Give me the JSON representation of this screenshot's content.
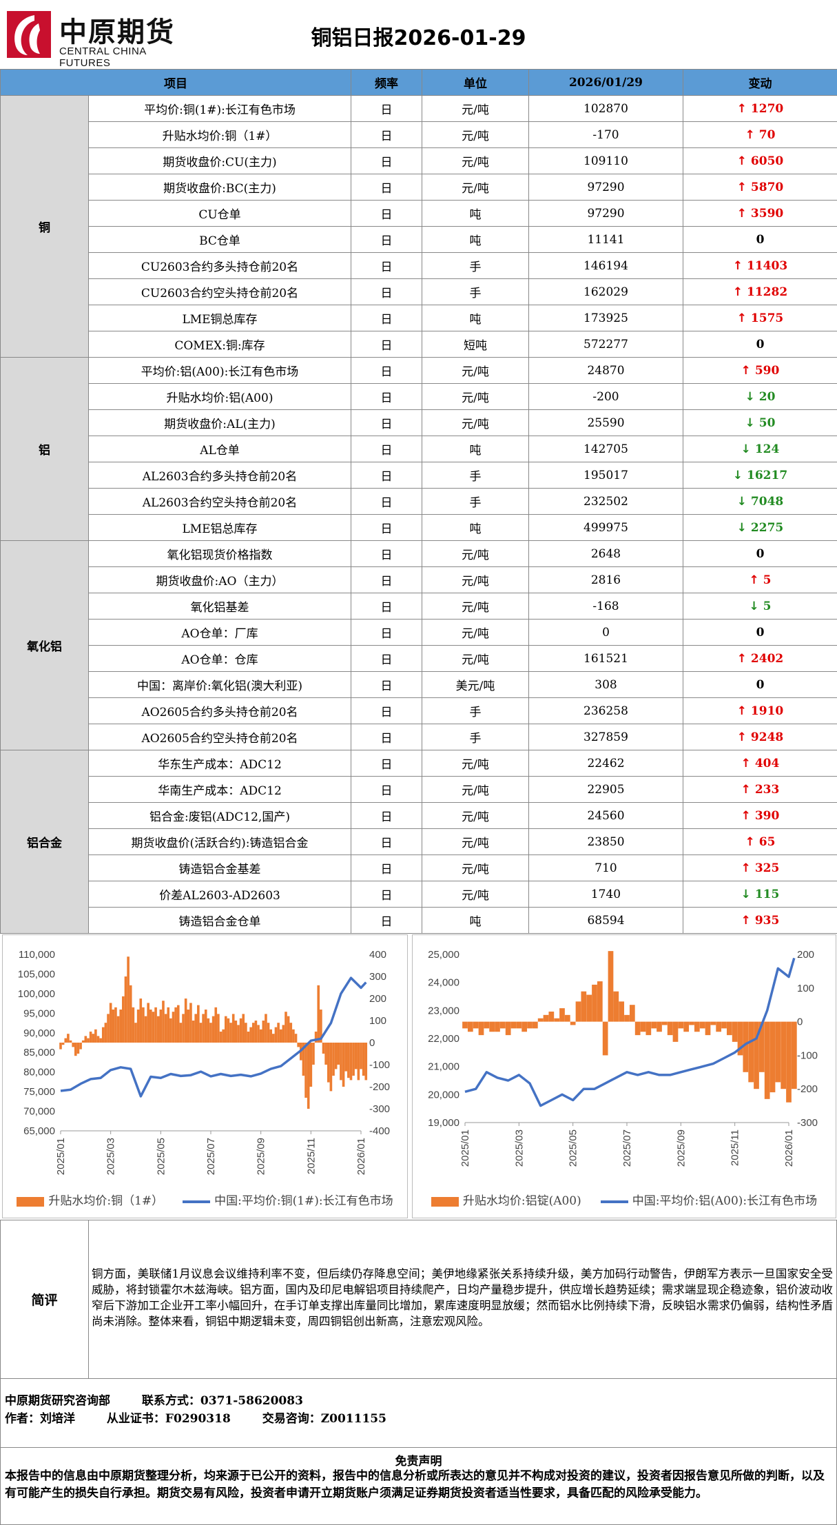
{
  "logo": {
    "cn": "中原期货",
    "en": "CENTRAL CHINA FUTURES"
  },
  "title": "铜铝日报2026-01-29",
  "table": {
    "headers": [
      "项目",
      "频率",
      "单位",
      "2026/01/29",
      "变动"
    ],
    "groups": [
      {
        "name": "铜",
        "rows": [
          {
            "item": "平均价:铜(1#):长江有色市场",
            "freq": "日",
            "unit": "元/吨",
            "value": "102870",
            "dir": "up",
            "change": "1270"
          },
          {
            "item": "升贴水均价:铜（1#）",
            "freq": "日",
            "unit": "元/吨",
            "value": "-170",
            "dir": "up",
            "change": "70"
          },
          {
            "item": "期货收盘价:CU(主力)",
            "freq": "日",
            "unit": "元/吨",
            "value": "109110",
            "dir": "up",
            "change": "6050"
          },
          {
            "item": "期货收盘价:BC(主力)",
            "freq": "日",
            "unit": "元/吨",
            "value": "97290",
            "dir": "up",
            "change": "5870"
          },
          {
            "item": "CU仓单",
            "freq": "日",
            "unit": "吨",
            "value": "97290",
            "dir": "up",
            "change": "3590"
          },
          {
            "item": "BC仓单",
            "freq": "日",
            "unit": "吨",
            "value": "11141",
            "dir": "flat",
            "change": "0"
          },
          {
            "item": "CU2603合约多头持仓前20名",
            "freq": "日",
            "unit": "手",
            "value": "146194",
            "dir": "up",
            "change": "11403"
          },
          {
            "item": "CU2603合约空头持仓前20名",
            "freq": "日",
            "unit": "手",
            "value": "162029",
            "dir": "up",
            "change": "11282"
          },
          {
            "item": "LME铜总库存",
            "freq": "日",
            "unit": "吨",
            "value": "173925",
            "dir": "up",
            "change": "1575"
          },
          {
            "item": "COMEX:铜:库存",
            "freq": "日",
            "unit": "短吨",
            "value": "572277",
            "dir": "flat",
            "change": "0"
          }
        ]
      },
      {
        "name": "铝",
        "rows": [
          {
            "item": "平均价:铝(A00):长江有色市场",
            "freq": "日",
            "unit": "元/吨",
            "value": "24870",
            "dir": "up",
            "change": "590"
          },
          {
            "item": "升贴水均价:铝(A00)",
            "freq": "日",
            "unit": "元/吨",
            "value": "-200",
            "dir": "down",
            "change": "20"
          },
          {
            "item": "期货收盘价:AL(主力)",
            "freq": "日",
            "unit": "元/吨",
            "value": "25590",
            "dir": "down",
            "change": "50"
          },
          {
            "item": "AL仓单",
            "freq": "日",
            "unit": "吨",
            "value": "142705",
            "dir": "down",
            "change": "124"
          },
          {
            "item": "AL2603合约多头持仓前20名",
            "freq": "日",
            "unit": "手",
            "value": "195017",
            "dir": "down",
            "change": "16217"
          },
          {
            "item": "AL2603合约空头持仓前20名",
            "freq": "日",
            "unit": "手",
            "value": "232502",
            "dir": "down",
            "change": "7048"
          },
          {
            "item": "LME铝总库存",
            "freq": "日",
            "unit": "吨",
            "value": "499975",
            "dir": "down",
            "change": "2275"
          }
        ]
      },
      {
        "name": "氧化铝",
        "rows": [
          {
            "item": "氧化铝现货价格指数",
            "freq": "日",
            "unit": "元/吨",
            "value": "2648",
            "dir": "flat",
            "change": "0"
          },
          {
            "item": "期货收盘价:AO（主力）",
            "freq": "日",
            "unit": "元/吨",
            "value": "2816",
            "dir": "up",
            "change": "5"
          },
          {
            "item": "氧化铝基差",
            "freq": "日",
            "unit": "元/吨",
            "value": "-168",
            "dir": "down",
            "change": "5"
          },
          {
            "item": "AO仓单：厂库",
            "freq": "日",
            "unit": "元/吨",
            "value": "0",
            "dir": "flat",
            "change": "0"
          },
          {
            "item": "AO仓单：仓库",
            "freq": "日",
            "unit": "元/吨",
            "value": "161521",
            "dir": "up",
            "change": "2402"
          },
          {
            "item": "中国：离岸价:氧化铝(澳大利亚)",
            "freq": "日",
            "unit": "美元/吨",
            "value": "308",
            "dir": "flat",
            "change": "0"
          },
          {
            "item": "AO2605合约多头持仓前20名",
            "freq": "日",
            "unit": "手",
            "value": "236258",
            "dir": "up",
            "change": "1910"
          },
          {
            "item": "AO2605合约空头持仓前20名",
            "freq": "日",
            "unit": "手",
            "value": "327859",
            "dir": "up",
            "change": "9248"
          }
        ]
      },
      {
        "name": "铝合金",
        "rows": [
          {
            "item": "华东生产成本：ADC12",
            "freq": "日",
            "unit": "元/吨",
            "value": "22462",
            "dir": "up",
            "change": "404"
          },
          {
            "item": "华南生产成本：ADC12",
            "freq": "日",
            "unit": "元/吨",
            "value": "22905",
            "dir": "up",
            "change": "233"
          },
          {
            "item": "铝合金:废铝(ADC12,国产)",
            "freq": "日",
            "unit": "元/吨",
            "value": "24560",
            "dir": "up",
            "change": "390"
          },
          {
            "item": "期货收盘价(活跃合约):铸造铝合金",
            "freq": "日",
            "unit": "元/吨",
            "value": "23850",
            "dir": "up",
            "change": "65"
          },
          {
            "item": "铸造铝合金基差",
            "freq": "日",
            "unit": "元/吨",
            "value": "710",
            "dir": "up",
            "change": "325"
          },
          {
            "item": "价差AL2603-AD2603",
            "freq": "日",
            "unit": "元/吨",
            "value": "1740",
            "dir": "down",
            "change": "115"
          },
          {
            "item": "铸造铝合金仓单",
            "freq": "日",
            "unit": "吨",
            "value": "68594",
            "dir": "up",
            "change": "935"
          }
        ]
      }
    ]
  },
  "chart_data": [
    {
      "type": "bar+line",
      "x_ticks": [
        "2025/01",
        "2025/03",
        "2025/05",
        "2025/07",
        "2025/09",
        "2025/11",
        "2026/01"
      ],
      "left_axis": {
        "ticks": [
          "65,000",
          "70,000",
          "75,000",
          "80,000",
          "85,000",
          "90,000",
          "95,000",
          "100,000",
          "105,000",
          "110,000"
        ],
        "ylim": [
          65000,
          110000
        ]
      },
      "right_axis": {
        "ticks": [
          "-400",
          "-300",
          "-200",
          "-100",
          "0",
          "100",
          "200",
          "300",
          "400"
        ],
        "ylim": [
          -400,
          400
        ]
      },
      "series": [
        {
          "name": "升贴水均价:铜（1#）",
          "kind": "bar",
          "axis": "right",
          "color": "#ed7d31",
          "x": [
            0,
            0.05,
            0.1,
            0.15,
            0.2,
            0.25,
            0.3,
            0.35,
            0.4,
            0.45,
            0.5,
            0.55,
            0.6,
            0.65,
            0.7,
            0.75,
            0.8,
            0.85,
            0.9,
            0.95,
            1.0,
            1.05,
            1.1,
            1.15,
            1.2,
            1.25,
            1.3,
            1.35,
            1.4,
            1.45,
            1.5,
            1.55,
            1.6,
            1.65,
            1.7,
            1.75,
            1.8,
            1.85,
            1.9,
            1.95,
            2.0,
            2.05,
            2.1,
            2.15,
            2.2,
            2.25,
            2.3,
            2.35,
            2.4,
            2.45,
            2.5,
            2.55,
            2.6,
            2.65,
            2.7,
            2.75,
            2.8,
            2.85,
            2.9,
            2.95,
            3.0,
            3.05,
            3.1,
            3.15,
            3.2,
            3.25,
            3.3,
            3.35,
            3.4,
            3.45,
            3.5,
            3.55,
            3.6,
            3.65,
            3.7,
            3.75,
            3.8,
            3.85,
            3.9,
            3.95,
            4.0,
            4.05,
            4.1,
            4.15,
            4.2,
            4.25,
            4.3,
            4.35,
            4.4,
            4.45,
            4.5,
            4.55,
            4.6,
            4.65,
            4.7,
            4.75,
            4.8,
            4.85,
            4.9,
            4.95,
            5.0,
            5.05,
            5.1,
            5.15,
            5.2,
            5.25,
            5.3,
            5.35,
            5.4,
            5.45,
            5.5,
            5.55,
            5.6,
            5.65,
            5.7,
            5.75,
            5.8,
            5.85,
            5.9,
            5.95,
            6.0,
            6.05,
            6.1
          ],
          "values": [
            -30,
            -10,
            20,
            40,
            10,
            -20,
            -60,
            -50,
            -30,
            10,
            30,
            20,
            50,
            40,
            60,
            30,
            20,
            70,
            90,
            130,
            180,
            150,
            160,
            120,
            150,
            210,
            300,
            390,
            260,
            160,
            90,
            150,
            200,
            160,
            120,
            180,
            150,
            140,
            160,
            120,
            150,
            190,
            130,
            160,
            110,
            140,
            160,
            170,
            90,
            130,
            200,
            150,
            180,
            100,
            130,
            170,
            90,
            130,
            150,
            110,
            90,
            120,
            160,
            130,
            50,
            60,
            120,
            110,
            90,
            130,
            100,
            80,
            110,
            130,
            90,
            50,
            70,
            90,
            100,
            80,
            60,
            100,
            130,
            90,
            60,
            40,
            70,
            90,
            60,
            80,
            140,
            120,
            90,
            60,
            40,
            -20,
            -80,
            -150,
            -250,
            -300,
            -200,
            -100,
            50,
            260,
            150,
            -50,
            -100,
            -180,
            -220,
            -150,
            -120,
            -100,
            -170,
            -200,
            -130,
            -160,
            -170,
            -150,
            -120,
            -170,
            -120,
            -150,
            -170
          ]
        },
        {
          "name": "中国:平均价:铜(1#):长江有色市场",
          "kind": "line",
          "axis": "left",
          "color": "#4472c4",
          "x": [
            0,
            0.2,
            0.4,
            0.6,
            0.8,
            1.0,
            1.2,
            1.4,
            1.6,
            1.8,
            2.0,
            2.2,
            2.4,
            2.6,
            2.8,
            3.0,
            3.2,
            3.4,
            3.6,
            3.8,
            4.0,
            4.2,
            4.4,
            4.6,
            4.8,
            5.0,
            5.2,
            5.4,
            5.6,
            5.8,
            6.0,
            6.1
          ],
          "values": [
            75200,
            75500,
            77000,
            78200,
            78500,
            80500,
            81200,
            80800,
            73800,
            78800,
            78500,
            79500,
            79000,
            79200,
            80100,
            78900,
            79500,
            79000,
            79300,
            78900,
            79600,
            80800,
            81500,
            83500,
            85500,
            88000,
            88500,
            92500,
            100000,
            104000,
            101500,
            102870
          ]
        }
      ]
    },
    {
      "type": "bar+line",
      "x_ticks": [
        "2025/01",
        "2025/03",
        "2025/05",
        "2025/07",
        "2025/09",
        "2025/11",
        "2026/01"
      ],
      "left_axis": {
        "ticks": [
          "19,000",
          "20,000",
          "21,000",
          "22,000",
          "23,000",
          "24,000",
          "25,000"
        ],
        "ylim": [
          19000,
          25000
        ]
      },
      "right_axis": {
        "ticks": [
          "-300",
          "-200",
          "-100",
          "0",
          "100",
          "200"
        ],
        "ylim": [
          -300,
          200
        ]
      },
      "series": [
        {
          "name": "升贴水均价:铝锭(A00)",
          "kind": "bar",
          "axis": "right",
          "color": "#ed7d31",
          "x": [
            0,
            0.1,
            0.2,
            0.3,
            0.4,
            0.5,
            0.6,
            0.7,
            0.8,
            0.9,
            1.0,
            1.1,
            1.2,
            1.3,
            1.4,
            1.5,
            1.6,
            1.7,
            1.8,
            1.9,
            2.0,
            2.1,
            2.2,
            2.3,
            2.4,
            2.5,
            2.6,
            2.7,
            2.8,
            2.9,
            3.0,
            3.1,
            3.2,
            3.3,
            3.4,
            3.5,
            3.6,
            3.7,
            3.8,
            3.9,
            4.0,
            4.1,
            4.2,
            4.3,
            4.4,
            4.5,
            4.6,
            4.7,
            4.8,
            4.9,
            5.0,
            5.1,
            5.2,
            5.3,
            5.4,
            5.5,
            5.6,
            5.7,
            5.8,
            5.9,
            6.0,
            6.1
          ],
          "values": [
            -20,
            -30,
            -20,
            -40,
            -20,
            -30,
            -30,
            -20,
            -40,
            -20,
            -20,
            -30,
            -20,
            -20,
            10,
            20,
            30,
            10,
            40,
            20,
            -10,
            60,
            90,
            80,
            110,
            120,
            -100,
            210,
            90,
            60,
            20,
            50,
            -40,
            -30,
            -40,
            -20,
            -30,
            -10,
            -40,
            -60,
            -20,
            -30,
            -10,
            -30,
            -20,
            -40,
            -10,
            -30,
            -20,
            -40,
            -60,
            -100,
            -150,
            -180,
            -200,
            -150,
            -230,
            -210,
            -180,
            -200,
            -240,
            -200
          ]
        },
        {
          "name": "中国:平均价:铝(A00):长江有色市场",
          "kind": "line",
          "axis": "left",
          "color": "#4472c4",
          "x": [
            0,
            0.2,
            0.4,
            0.6,
            0.8,
            1.0,
            1.2,
            1.4,
            1.6,
            1.8,
            2.0,
            2.2,
            2.4,
            2.6,
            2.8,
            3.0,
            3.2,
            3.4,
            3.6,
            3.8,
            4.0,
            4.2,
            4.4,
            4.6,
            4.8,
            5.0,
            5.2,
            5.4,
            5.6,
            5.8,
            6.0,
            6.1
          ],
          "values": [
            20100,
            20200,
            20800,
            20600,
            20500,
            20700,
            20400,
            19600,
            19800,
            20000,
            19800,
            20200,
            20200,
            20400,
            20600,
            20800,
            20700,
            20800,
            20700,
            20700,
            20800,
            20900,
            21000,
            21100,
            21300,
            21500,
            21800,
            22000,
            23000,
            24500,
            24200,
            24870
          ]
        }
      ]
    }
  ],
  "review": {
    "label": "简评",
    "text": "铜方面，美联储1月议息会议维持利率不变，但后续仍存降息空间；美伊地缘紧张关系持续升级，美方加码行动警告，伊朗军方表示一旦国家安全受威胁，将封锁霍尔木兹海峡。铝方面，国内及印尼电解铝项目持续爬产，日均产量稳步提升，供应增长趋势延续；需求端显现企稳迹象，铝价波动收窄后下游加工企业开工率小幅回升，在手订单支撑出库量同比增加，累库速度明显放缓；然而铝水比例持续下滑，反映铝水需求仍偏弱，结构性矛盾尚未消除。整体来看，铜铝中期逻辑未变，周四铜铝创出新高，注意宏观风险。"
  },
  "contact": {
    "dept": "中原期货研究咨询部",
    "phone_label": "联系方式：",
    "phone": "0371-58620083",
    "author_label": "作者：",
    "author": "刘培洋",
    "cert_label": "从业证书：",
    "cert": "F0290318",
    "consult_label": "交易咨询：",
    "consult": "Z0011155"
  },
  "disclaimer": {
    "title": "免责声明",
    "text": "本报告中的信息由中原期货整理分析，均来源于已公开的资料，报告中的信息分析或所表达的意见并不构成对投资的建议，投资者因报告意见所做的判断，以及有可能产生的损失自行承担。期货交易有风险，投资者申请开立期货账户须满足证券期货投资者适当性要求，具备匹配的风险承受能力。"
  }
}
